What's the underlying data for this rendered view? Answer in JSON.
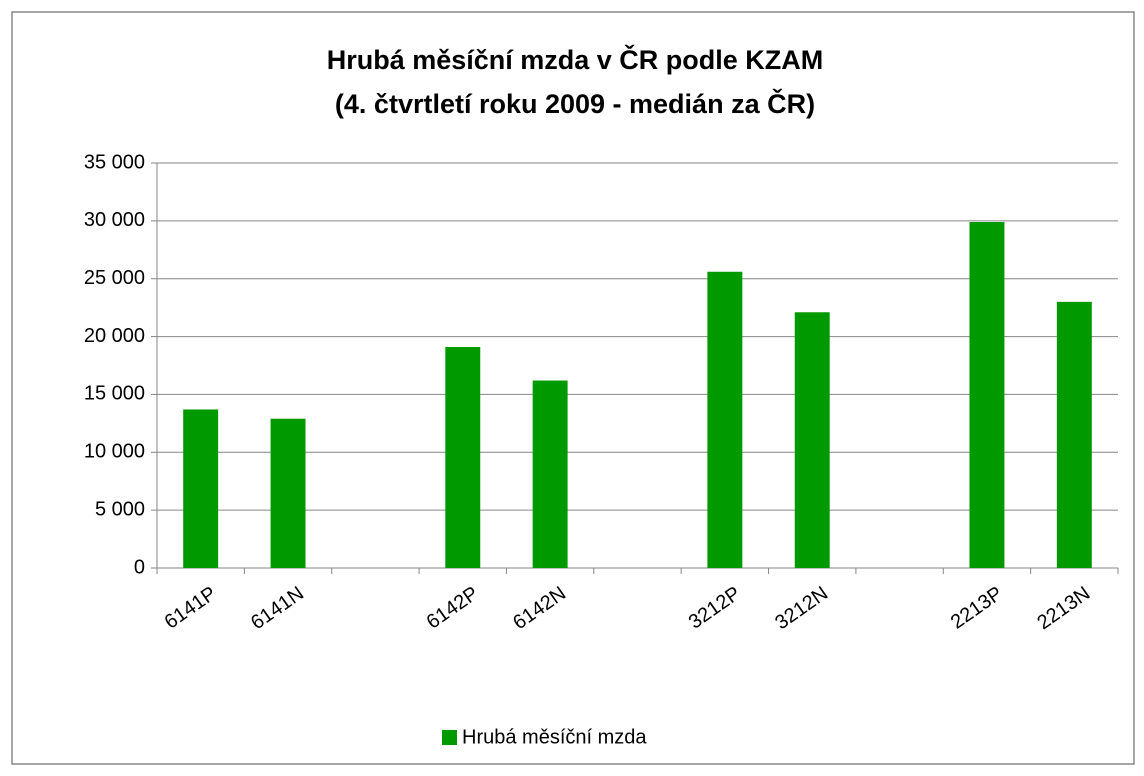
{
  "chart_data": {
    "type": "bar",
    "title": "Hrubá měsíční mzda v ČR podle KZAM",
    "subtitle": "(4. čtvrtletí roku 2009 - medián za ČR)",
    "categories": [
      "6141P",
      "6141N",
      null,
      "6142P",
      "6142N",
      null,
      "3212P",
      "3212N",
      null,
      "2213P",
      "2213N"
    ],
    "series": [
      {
        "name": "Hrubá měsíční mzda",
        "color": "#009900",
        "values": [
          13700,
          12900,
          null,
          19100,
          16200,
          null,
          25600,
          22100,
          null,
          29900,
          23000
        ]
      }
    ],
    "ylim": [
      0,
      35000
    ],
    "yticks": [
      0,
      {
        "value": 5000,
        "label": "5 000"
      },
      {
        "value": 10000,
        "label": "10 000"
      },
      {
        "value": 15000,
        "label": "15 000"
      },
      {
        "value": 20000,
        "label": "20 000"
      },
      {
        "value": 25000,
        "label": "25 000"
      },
      {
        "value": 30000,
        "label": "30 000"
      },
      {
        "value": 35000,
        "label": "35 000"
      }
    ],
    "grid": true,
    "legend": "bottom"
  }
}
